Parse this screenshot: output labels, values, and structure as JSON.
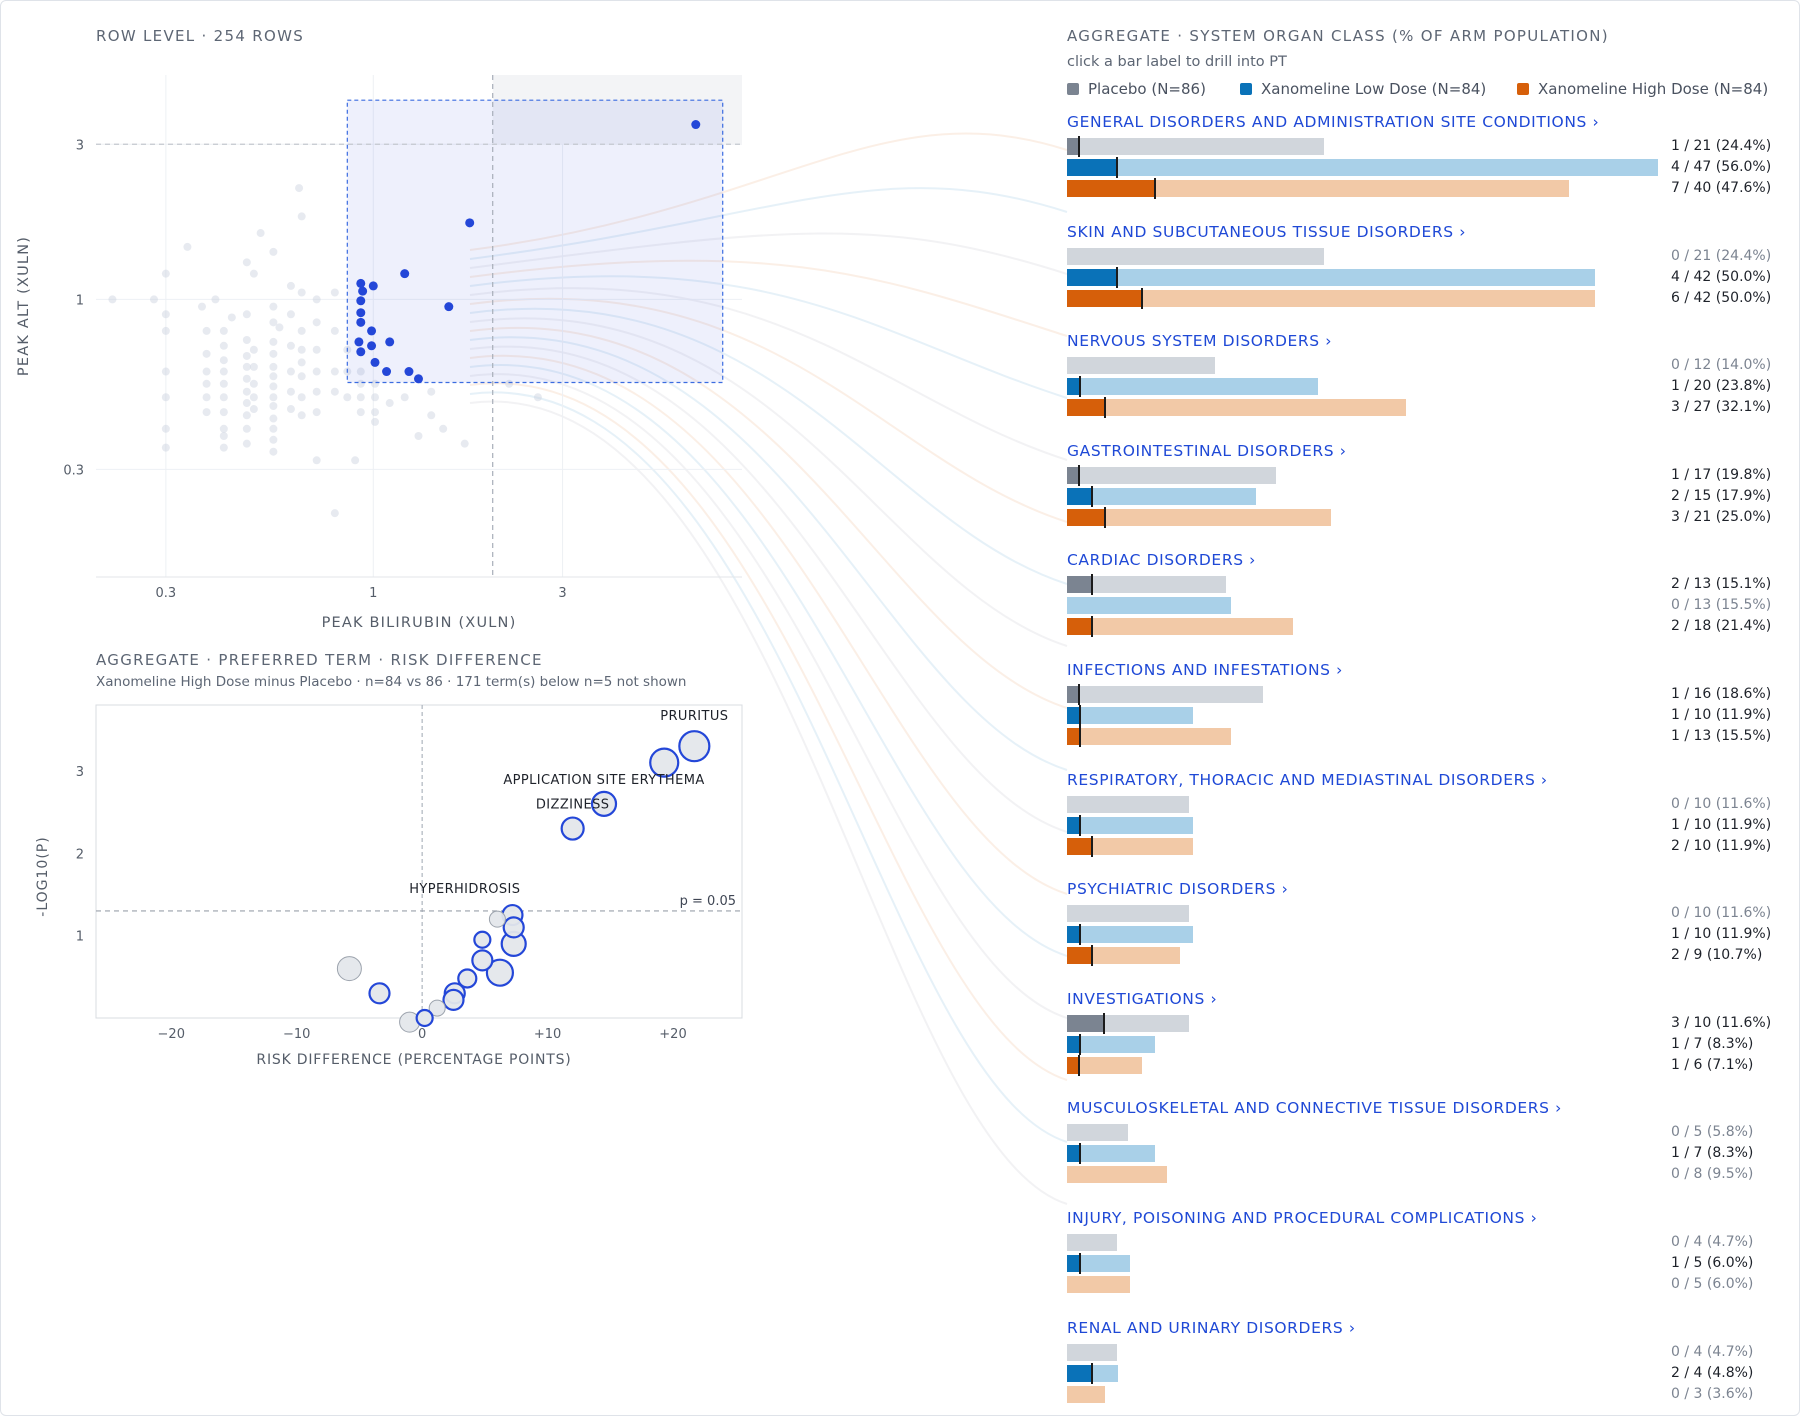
{
  "scatter": {
    "title": "ROW LEVEL · 254 ROWS",
    "xlabel": "PEAK BILIRUBIN (XULN)",
    "ylabel": "PEAK ALT (XULN)",
    "xticks": [
      "0.3",
      "1",
      "3"
    ],
    "yticks": [
      "0.3",
      "1",
      "3"
    ],
    "selected_color": "#2447d8",
    "faded_color": "#c9d1dd"
  },
  "volcano": {
    "title": "AGGREGATE · PREFERRED TERM · RISK DIFFERENCE",
    "subtitle": "Xanomeline High Dose minus Placebo · n=84 vs 86 · 171 term(s) below n=5 not shown",
    "xlabel": "RISK DIFFERENCE (PERCENTAGE POINTS)",
    "ylabel": "-LOG10(P)",
    "xticks": [
      "−20",
      "−10",
      "0",
      "+10",
      "+20"
    ],
    "yticks": [
      "1",
      "2",
      "3"
    ],
    "threshold_label": "p = 0.05",
    "annotations": [
      "PRURITUS",
      "APPLICATION SITE ERYTHEMA",
      "DIZZINESS",
      "HYPERHIDROSIS"
    ]
  },
  "soc_panel": {
    "title": "AGGREGATE · SYSTEM ORGAN CLASS (% OF ARM POPULATION)",
    "hint": "click a bar label to drill into PT",
    "legend": [
      "Placebo (N=86)",
      "Xanomeline Low Dose (N=84)",
      "Xanomeline High Dose (N=84)"
    ],
    "colors": {
      "placebo_dark": "#7b8491",
      "placebo_light": "#d1d6dc",
      "low_dark": "#0a72b8",
      "low_light": "#a9d0e8",
      "high_dark": "#d65f0a",
      "high_light": "#f2c9a7"
    }
  },
  "chart_data": [
    {
      "type": "scatter",
      "title": "ROW LEVEL · 254 ROWS",
      "xlabel": "PEAK BILIRUBIN (XULN)",
      "ylabel": "PEAK ALT (XULN)",
      "x_scale": "log",
      "y_scale": "log",
      "xlim": [
        0.2,
        8.5
      ],
      "ylim": [
        0.14,
        4.9
      ],
      "reference_lines": {
        "x": 2,
        "y": 3
      },
      "selected_points": [
        [
          0.93,
          1.12
        ],
        [
          0.94,
          1.06
        ],
        [
          0.93,
          0.99
        ],
        [
          1.0,
          1.1
        ],
        [
          1.2,
          1.2
        ],
        [
          1.75,
          1.72
        ],
        [
          0.93,
          0.91
        ],
        [
          0.93,
          0.85
        ],
        [
          1.55,
          0.95
        ],
        [
          0.99,
          0.8
        ],
        [
          1.1,
          0.74
        ],
        [
          0.92,
          0.74
        ],
        [
          0.93,
          0.69
        ],
        [
          0.99,
          0.72
        ],
        [
          1.01,
          0.64
        ],
        [
          1.08,
          0.6
        ],
        [
          1.23,
          0.6
        ],
        [
          1.3,
          0.57
        ],
        [
          6.5,
          3.45
        ]
      ],
      "background_points": [
        [
          0.22,
          1.0
        ],
        [
          0.28,
          1.0
        ],
        [
          0.3,
          1.2
        ],
        [
          0.3,
          0.9
        ],
        [
          0.3,
          0.8
        ],
        [
          0.3,
          0.6
        ],
        [
          0.3,
          0.5
        ],
        [
          0.3,
          0.4
        ],
        [
          0.3,
          0.35
        ],
        [
          0.37,
          0.95
        ],
        [
          0.38,
          0.8
        ],
        [
          0.38,
          0.68
        ],
        [
          0.38,
          0.6
        ],
        [
          0.38,
          0.55
        ],
        [
          0.38,
          0.5
        ],
        [
          0.38,
          0.45
        ],
        [
          0.4,
          1.0
        ],
        [
          0.42,
          0.8
        ],
        [
          0.42,
          0.72
        ],
        [
          0.42,
          0.65
        ],
        [
          0.42,
          0.6
        ],
        [
          0.42,
          0.55
        ],
        [
          0.42,
          0.5
        ],
        [
          0.42,
          0.45
        ],
        [
          0.42,
          0.4
        ],
        [
          0.42,
          0.38
        ],
        [
          0.42,
          0.35
        ],
        [
          0.48,
          1.3
        ],
        [
          0.48,
          0.9
        ],
        [
          0.48,
          0.75
        ],
        [
          0.48,
          0.67
        ],
        [
          0.48,
          0.62
        ],
        [
          0.48,
          0.57
        ],
        [
          0.48,
          0.52
        ],
        [
          0.48,
          0.48
        ],
        [
          0.48,
          0.44
        ],
        [
          0.48,
          0.4
        ],
        [
          0.48,
          0.36
        ],
        [
          0.5,
          1.2
        ],
        [
          0.5,
          0.7
        ],
        [
          0.5,
          0.62
        ],
        [
          0.5,
          0.55
        ],
        [
          0.5,
          0.5
        ],
        [
          0.5,
          0.46
        ],
        [
          0.56,
          1.4
        ],
        [
          0.56,
          0.95
        ],
        [
          0.56,
          0.85
        ],
        [
          0.56,
          0.74
        ],
        [
          0.56,
          0.68
        ],
        [
          0.56,
          0.62
        ],
        [
          0.56,
          0.58
        ],
        [
          0.56,
          0.54
        ],
        [
          0.56,
          0.5
        ],
        [
          0.56,
          0.47
        ],
        [
          0.56,
          0.43
        ],
        [
          0.56,
          0.4
        ],
        [
          0.56,
          0.37
        ],
        [
          0.56,
          0.34
        ],
        [
          0.62,
          1.1
        ],
        [
          0.62,
          0.9
        ],
        [
          0.62,
          0.72
        ],
        [
          0.62,
          0.6
        ],
        [
          0.62,
          0.52
        ],
        [
          0.62,
          0.46
        ],
        [
          0.66,
          1.8
        ],
        [
          0.66,
          0.8
        ],
        [
          0.66,
          0.7
        ],
        [
          0.66,
          0.64
        ],
        [
          0.66,
          0.58
        ],
        [
          0.66,
          0.5
        ],
        [
          0.66,
          0.44
        ],
        [
          0.72,
          1.0
        ],
        [
          0.72,
          0.85
        ],
        [
          0.72,
          0.7
        ],
        [
          0.72,
          0.6
        ],
        [
          0.72,
          0.52
        ],
        [
          0.72,
          0.45
        ],
        [
          0.72,
          0.32
        ],
        [
          0.8,
          1.05
        ],
        [
          0.8,
          0.8
        ],
        [
          0.8,
          0.6
        ],
        [
          0.8,
          0.52
        ],
        [
          0.8,
          0.22
        ],
        [
          0.86,
          0.7
        ],
        [
          0.86,
          0.6
        ],
        [
          0.86,
          0.5
        ],
        [
          0.93,
          0.6
        ],
        [
          0.93,
          0.55
        ],
        [
          0.93,
          0.5
        ],
        [
          0.93,
          0.45
        ],
        [
          1.01,
          0.55
        ],
        [
          1.01,
          0.5
        ],
        [
          1.01,
          0.45
        ],
        [
          1.01,
          0.42
        ],
        [
          1.1,
          0.48
        ],
        [
          1.2,
          0.5
        ],
        [
          1.4,
          0.52
        ],
        [
          1.4,
          0.44
        ],
        [
          1.5,
          0.4
        ],
        [
          1.7,
          0.36
        ],
        [
          2.2,
          0.55
        ],
        [
          2.6,
          0.5
        ],
        [
          0.65,
          2.2
        ],
        [
          0.52,
          1.6
        ],
        [
          0.66,
          1.05
        ],
        [
          0.58,
          0.82
        ],
        [
          0.44,
          0.88
        ],
        [
          1.3,
          0.38
        ],
        [
          0.9,
          0.32
        ],
        [
          0.34,
          1.45
        ]
      ]
    },
    {
      "type": "scatter",
      "title": "AGGREGATE · PREFERRED TERM · RISK DIFFERENCE",
      "xlabel": "RISK DIFFERENCE (PERCENTAGE POINTS)",
      "ylabel": "-LOG10(P)",
      "xlim": [
        -26,
        25.5
      ],
      "ylim": [
        0,
        3.8
      ],
      "threshold": {
        "y": 1.3,
        "label": "p = 0.05"
      },
      "points": [
        {
          "label": "PRURITUS",
          "x": 21.7,
          "y": 3.3,
          "r": 15,
          "significant": true
        },
        {
          "label": "",
          "x": 19.3,
          "y": 3.1,
          "r": 14,
          "significant": true
        },
        {
          "label": "APPLICATION SITE ERYTHEMA",
          "x": 14.5,
          "y": 2.6,
          "r": 12,
          "significant": true
        },
        {
          "label": "DIZZINESS",
          "x": 12.0,
          "y": 2.3,
          "r": 11,
          "significant": true
        },
        {
          "label": "HYPERHIDROSIS",
          "x": 7.2,
          "y": 1.25,
          "r": 10,
          "significant": true
        },
        {
          "label": "",
          "x": 6.0,
          "y": 1.2,
          "r": 8,
          "significant": false
        },
        {
          "label": "",
          "x": 7.3,
          "y": 1.1,
          "r": 10,
          "significant": true
        },
        {
          "label": "",
          "x": 7.3,
          "y": 0.9,
          "r": 12,
          "significant": true
        },
        {
          "label": "",
          "x": 4.8,
          "y": 0.95,
          "r": 8,
          "significant": true
        },
        {
          "label": "",
          "x": 4.8,
          "y": 0.7,
          "r": 10,
          "significant": true
        },
        {
          "label": "",
          "x": 6.2,
          "y": 0.55,
          "r": 13,
          "significant": true
        },
        {
          "label": "",
          "x": 3.6,
          "y": 0.48,
          "r": 9,
          "significant": true
        },
        {
          "label": "",
          "x": 2.6,
          "y": 0.3,
          "r": 10,
          "significant": true
        },
        {
          "label": "",
          "x": 2.5,
          "y": 0.22,
          "r": 10,
          "significant": true
        },
        {
          "label": "",
          "x": 1.2,
          "y": 0.12,
          "r": 8,
          "significant": false
        },
        {
          "label": "",
          "x": 0.2,
          "y": 0.0,
          "r": 8,
          "significant": true
        },
        {
          "label": "",
          "x": -1.0,
          "y": -0.05,
          "r": 10,
          "significant": false
        },
        {
          "label": "",
          "x": -3.4,
          "y": 0.3,
          "r": 10,
          "significant": true
        },
        {
          "label": "",
          "x": -5.8,
          "y": 0.6,
          "r": 12,
          "significant": false
        }
      ]
    },
    {
      "type": "bar",
      "title": "AGGREGATE · SYSTEM ORGAN CLASS (% OF ARM POPULATION)",
      "series": [
        {
          "name": "Placebo (N=86)"
        },
        {
          "name": "Xanomeline Low Dose (N=84)"
        },
        {
          "name": "Xanomeline High Dose (N=84)"
        }
      ],
      "categories": [
        {
          "name": "GENERAL DISORDERS AND ADMINISTRATION SITE CONDITIONS ›",
          "rows": [
            {
              "selected": 1,
              "total": 21,
              "pct": 24.4,
              "label": "1 / 21 (24.4%)"
            },
            {
              "selected": 4,
              "total": 47,
              "pct": 56.0,
              "label": "4 / 47 (56.0%)"
            },
            {
              "selected": 7,
              "total": 40,
              "pct": 47.6,
              "label": "7 / 40 (47.6%)"
            }
          ]
        },
        {
          "name": "SKIN AND SUBCUTANEOUS TISSUE DISORDERS ›",
          "rows": [
            {
              "selected": 0,
              "total": 21,
              "pct": 24.4,
              "label": "0 / 21 (24.4%)"
            },
            {
              "selected": 4,
              "total": 42,
              "pct": 50.0,
              "label": "4 / 42 (50.0%)"
            },
            {
              "selected": 6,
              "total": 42,
              "pct": 50.0,
              "label": "6 / 42 (50.0%)"
            }
          ]
        },
        {
          "name": "NERVOUS SYSTEM DISORDERS ›",
          "rows": [
            {
              "selected": 0,
              "total": 12,
              "pct": 14.0,
              "label": "0 / 12 (14.0%)"
            },
            {
              "selected": 1,
              "total": 20,
              "pct": 23.8,
              "label": "1 / 20 (23.8%)"
            },
            {
              "selected": 3,
              "total": 27,
              "pct": 32.1,
              "label": "3 / 27 (32.1%)"
            }
          ]
        },
        {
          "name": "GASTROINTESTINAL DISORDERS ›",
          "rows": [
            {
              "selected": 1,
              "total": 17,
              "pct": 19.8,
              "label": "1 / 17 (19.8%)"
            },
            {
              "selected": 2,
              "total": 15,
              "pct": 17.9,
              "label": "2 / 15 (17.9%)"
            },
            {
              "selected": 3,
              "total": 21,
              "pct": 25.0,
              "label": "3 / 21 (25.0%)"
            }
          ]
        },
        {
          "name": "CARDIAC DISORDERS ›",
          "rows": [
            {
              "selected": 2,
              "total": 13,
              "pct": 15.1,
              "label": "2 / 13 (15.1%)"
            },
            {
              "selected": 0,
              "total": 13,
              "pct": 15.5,
              "label": "0 / 13 (15.5%)"
            },
            {
              "selected": 2,
              "total": 18,
              "pct": 21.4,
              "label": "2 / 18 (21.4%)"
            }
          ]
        },
        {
          "name": "INFECTIONS AND INFESTATIONS ›",
          "rows": [
            {
              "selected": 1,
              "total": 16,
              "pct": 18.6,
              "label": "1 / 16 (18.6%)"
            },
            {
              "selected": 1,
              "total": 10,
              "pct": 11.9,
              "label": "1 / 10 (11.9%)"
            },
            {
              "selected": 1,
              "total": 13,
              "pct": 15.5,
              "label": "1 / 13 (15.5%)"
            }
          ]
        },
        {
          "name": "RESPIRATORY, THORACIC AND MEDIASTINAL DISORDERS ›",
          "rows": [
            {
              "selected": 0,
              "total": 10,
              "pct": 11.6,
              "label": "0 / 10 (11.6%)"
            },
            {
              "selected": 1,
              "total": 10,
              "pct": 11.9,
              "label": "1 / 10 (11.9%)"
            },
            {
              "selected": 2,
              "total": 10,
              "pct": 11.9,
              "label": "2 / 10 (11.9%)"
            }
          ]
        },
        {
          "name": "PSYCHIATRIC DISORDERS ›",
          "rows": [
            {
              "selected": 0,
              "total": 10,
              "pct": 11.6,
              "label": "0 / 10 (11.6%)"
            },
            {
              "selected": 1,
              "total": 10,
              "pct": 11.9,
              "label": "1 / 10 (11.9%)"
            },
            {
              "selected": 2,
              "total": 9,
              "pct": 10.7,
              "label": "2 / 9 (10.7%)"
            }
          ]
        },
        {
          "name": "INVESTIGATIONS ›",
          "rows": [
            {
              "selected": 3,
              "total": 10,
              "pct": 11.6,
              "label": "3 / 10 (11.6%)"
            },
            {
              "selected": 1,
              "total": 7,
              "pct": 8.3,
              "label": "1 / 7 (8.3%)"
            },
            {
              "selected": 1,
              "total": 6,
              "pct": 7.1,
              "label": "1 / 6 (7.1%)"
            }
          ]
        },
        {
          "name": "MUSCULOSKELETAL AND CONNECTIVE TISSUE DISORDERS ›",
          "rows": [
            {
              "selected": 0,
              "total": 5,
              "pct": 5.8,
              "label": "0 / 5 (5.8%)"
            },
            {
              "selected": 1,
              "total": 7,
              "pct": 8.3,
              "label": "1 / 7 (8.3%)"
            },
            {
              "selected": 0,
              "total": 8,
              "pct": 9.5,
              "label": "0 / 8 (9.5%)"
            }
          ]
        },
        {
          "name": "INJURY, POISONING AND PROCEDURAL COMPLICATIONS ›",
          "rows": [
            {
              "selected": 0,
              "total": 4,
              "pct": 4.7,
              "label": "0 / 4 (4.7%)"
            },
            {
              "selected": 1,
              "total": 5,
              "pct": 6.0,
              "label": "1 / 5 (6.0%)"
            },
            {
              "selected": 0,
              "total": 5,
              "pct": 6.0,
              "label": "0 / 5 (6.0%)"
            }
          ]
        },
        {
          "name": "RENAL AND URINARY DISORDERS ›",
          "rows": [
            {
              "selected": 0,
              "total": 4,
              "pct": 4.7,
              "label": "0 / 4 (4.7%)"
            },
            {
              "selected": 2,
              "total": 4,
              "pct": 4.8,
              "label": "2 / 4 (4.8%)"
            },
            {
              "selected": 0,
              "total": 3,
              "pct": 3.6,
              "label": "0 / 3 (3.6%)"
            }
          ]
        }
      ]
    }
  ]
}
